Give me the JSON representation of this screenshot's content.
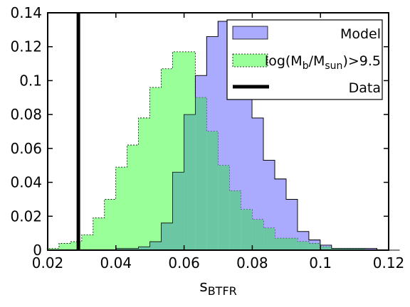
{
  "chart_data": {
    "type": "histogram",
    "xlabel": "s",
    "xlabel_sub": "BTFR",
    "xlim": [
      0.02,
      0.12
    ],
    "ylim": [
      0,
      0.14
    ],
    "xticks": [
      "0.02",
      "0.04",
      "0.06",
      "0.08",
      "0.1",
      "0.12"
    ],
    "xtick_values": [
      0.02,
      0.04,
      0.06,
      0.08,
      0.1,
      0.12
    ],
    "yticks": [
      "0",
      "0.02",
      "0.04",
      "0.06",
      "0.08",
      "0.1",
      "0.12",
      "0.14"
    ],
    "ytick_values": [
      0,
      0.02,
      0.04,
      0.06,
      0.08,
      0.1,
      0.12,
      0.14
    ],
    "grid": false,
    "legend_position": "top-right",
    "bin_start": 0.02,
    "bin_width": 0.00333,
    "series": [
      {
        "name": "Model",
        "color": "#aaaaff",
        "values": [
          0,
          0,
          0,
          0,
          0,
          0,
          0.001,
          0.001,
          0.002,
          0.005,
          0.016,
          0.046,
          0.08,
          0.103,
          0.126,
          0.135,
          0.126,
          0.111,
          0.078,
          0.053,
          0.042,
          0.03,
          0.011,
          0.006,
          0.003,
          0.001,
          0.001,
          0.001,
          0.001,
          0,
          0
        ]
      },
      {
        "name": "log(M",
        "name_sub1": "b",
        "name_mid": "/M",
        "name_sub2": "sun",
        "name_end": ")>9.5",
        "color": "#99ff99",
        "values": [
          0.001,
          0.004,
          0.005,
          0.009,
          0.019,
          0.03,
          0.049,
          0.062,
          0.078,
          0.096,
          0.107,
          0.117,
          0.117,
          0.09,
          0.07,
          0.05,
          0.035,
          0.024,
          0.018,
          0.013,
          0.007,
          0.007,
          0.005,
          0.004,
          0.002,
          0.001,
          0.001,
          0.001,
          0,
          0,
          0
        ]
      }
    ],
    "data_line": {
      "name": "Data",
      "x": 0.029
    }
  }
}
